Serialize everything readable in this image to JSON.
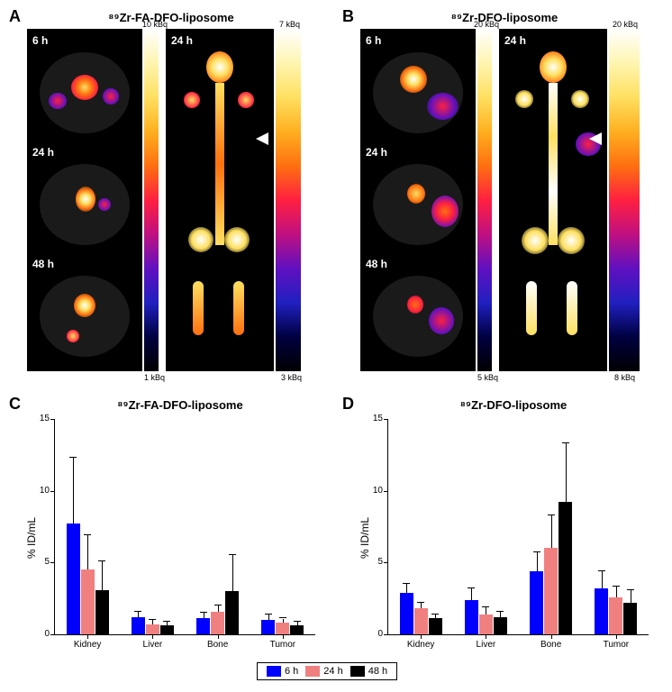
{
  "panelA": {
    "label": "A",
    "title": "⁸⁹Zr-FA-DFO-liposome",
    "timepoints": [
      "6 h",
      "24 h",
      "48 h"
    ],
    "main_label": "24 h",
    "colorbar1": {
      "top": "10 kBq",
      "bottom": "1 kBq"
    },
    "colorbar2": {
      "top": "7 kBq",
      "bottom": "3 kBq"
    }
  },
  "panelB": {
    "label": "B",
    "title": "⁸⁹Zr-DFO-liposome",
    "timepoints": [
      "6 h",
      "24 h",
      "48 h"
    ],
    "main_label": "24 h",
    "colorbar1": {
      "top": "20 kBq",
      "bottom": "5 kBq"
    },
    "colorbar2": {
      "top": "20 kBq",
      "bottom": "8 kBq"
    }
  },
  "panelC": {
    "label": "C",
    "title": "⁸⁹Zr-FA-DFO-liposome",
    "ylabel": "% ID/mL",
    "ylim": [
      0,
      15
    ],
    "yticks": [
      0,
      5,
      10,
      15
    ],
    "categories": [
      "Kidney",
      "Liver",
      "Bone",
      "Tumor"
    ],
    "series": [
      {
        "name": "6 h",
        "color": "#0000ff",
        "values": [
          7.7,
          1.2,
          1.1,
          1.0
        ],
        "errors": [
          4.6,
          0.4,
          0.4,
          0.4
        ]
      },
      {
        "name": "24 h",
        "color": "#f08080",
        "values": [
          4.5,
          0.7,
          1.6,
          0.8
        ],
        "errors": [
          2.4,
          0.3,
          0.4,
          0.3
        ]
      },
      {
        "name": "48 h",
        "color": "#000000",
        "values": [
          3.1,
          0.6,
          3.0,
          0.6
        ],
        "errors": [
          2.0,
          0.3,
          2.5,
          0.3
        ]
      }
    ]
  },
  "panelD": {
    "label": "D",
    "title": "⁸⁹Zr-DFO-liposome",
    "ylabel": "% ID/mL",
    "ylim": [
      0,
      15
    ],
    "yticks": [
      0,
      5,
      10,
      15
    ],
    "categories": [
      "Kidney",
      "Liver",
      "Bone",
      "Tumor"
    ],
    "series": [
      {
        "name": "6 h",
        "color": "#0000ff",
        "values": [
          2.9,
          2.4,
          4.4,
          3.2
        ],
        "errors": [
          0.6,
          0.8,
          1.3,
          1.2
        ]
      },
      {
        "name": "24 h",
        "color": "#f08080",
        "values": [
          1.8,
          1.4,
          6.0,
          2.6
        ],
        "errors": [
          0.4,
          0.5,
          2.3,
          0.7
        ]
      },
      {
        "name": "48 h",
        "color": "#000000",
        "values": [
          1.1,
          1.2,
          9.2,
          2.2
        ],
        "errors": [
          0.3,
          0.4,
          4.1,
          0.9
        ]
      }
    ]
  },
  "legend": {
    "items": [
      {
        "label": "6 h",
        "color": "#0000ff"
      },
      {
        "label": "24 h",
        "color": "#f08080"
      },
      {
        "label": "48 h",
        "color": "#000000"
      }
    ]
  },
  "colorbar_stops": [
    "#ffffff",
    "#fff5b0",
    "#ffe060",
    "#ffb020",
    "#ff7010",
    "#ff2040",
    "#c01080",
    "#6010c0",
    "#2020c0",
    "#000040",
    "#000000"
  ]
}
